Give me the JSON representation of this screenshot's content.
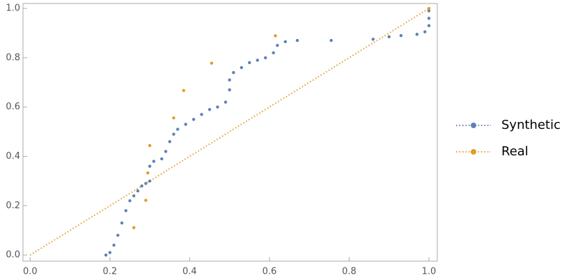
{
  "chart_data": {
    "type": "scatter",
    "xlim": [
      -0.018,
      1.021
    ],
    "ylim": [
      -0.025,
      1.02
    ],
    "xticks": [
      {
        "value": 0,
        "label": "0.0"
      },
      0.2,
      0.4,
      0.6,
      0.8,
      {
        "value": 1,
        "label": "1.0"
      }
    ],
    "yticks": [
      {
        "value": 0,
        "label": "0.0"
      },
      0.2,
      0.4,
      0.6,
      0.8,
      {
        "value": 1,
        "label": "1.0"
      }
    ],
    "legend": "right",
    "reference_line": {
      "x": [
        0,
        1
      ],
      "y": [
        0,
        1
      ],
      "color": "#e19c24"
    },
    "series": [
      {
        "name": "Synthetic",
        "color": "#5e81b5",
        "x": [
          0.19,
          0.2,
          0.21,
          0.22,
          0.23,
          0.24,
          0.25,
          0.26,
          0.27,
          0.28,
          0.29,
          0.3,
          0.3,
          0.31,
          0.33,
          0.34,
          0.35,
          0.36,
          0.37,
          0.39,
          0.41,
          0.43,
          0.45,
          0.47,
          0.49,
          0.5,
          0.5,
          0.51,
          0.53,
          0.55,
          0.57,
          0.59,
          0.61,
          0.62,
          0.64,
          0.67,
          0.755,
          0.86,
          0.9,
          0.93,
          0.97,
          0.99,
          1.0,
          1.0,
          1.0
        ],
        "values": [
          0.0,
          0.01,
          0.04,
          0.08,
          0.13,
          0.18,
          0.22,
          0.24,
          0.26,
          0.28,
          0.29,
          0.3,
          0.36,
          0.38,
          0.39,
          0.42,
          0.46,
          0.49,
          0.51,
          0.53,
          0.55,
          0.57,
          0.59,
          0.6,
          0.62,
          0.67,
          0.71,
          0.74,
          0.76,
          0.78,
          0.79,
          0.8,
          0.82,
          0.85,
          0.865,
          0.87,
          0.87,
          0.875,
          0.885,
          0.89,
          0.895,
          0.905,
          0.93,
          0.96,
          0.99
        ]
      },
      {
        "name": "Real",
        "color": "#e19c24",
        "x": [
          0.26,
          0.29,
          0.295,
          0.3,
          0.36,
          0.385,
          0.455,
          0.615,
          1.0
        ],
        "values": [
          0.111,
          0.222,
          0.333,
          0.444,
          0.556,
          0.667,
          0.778,
          0.889,
          1.0
        ]
      }
    ]
  }
}
